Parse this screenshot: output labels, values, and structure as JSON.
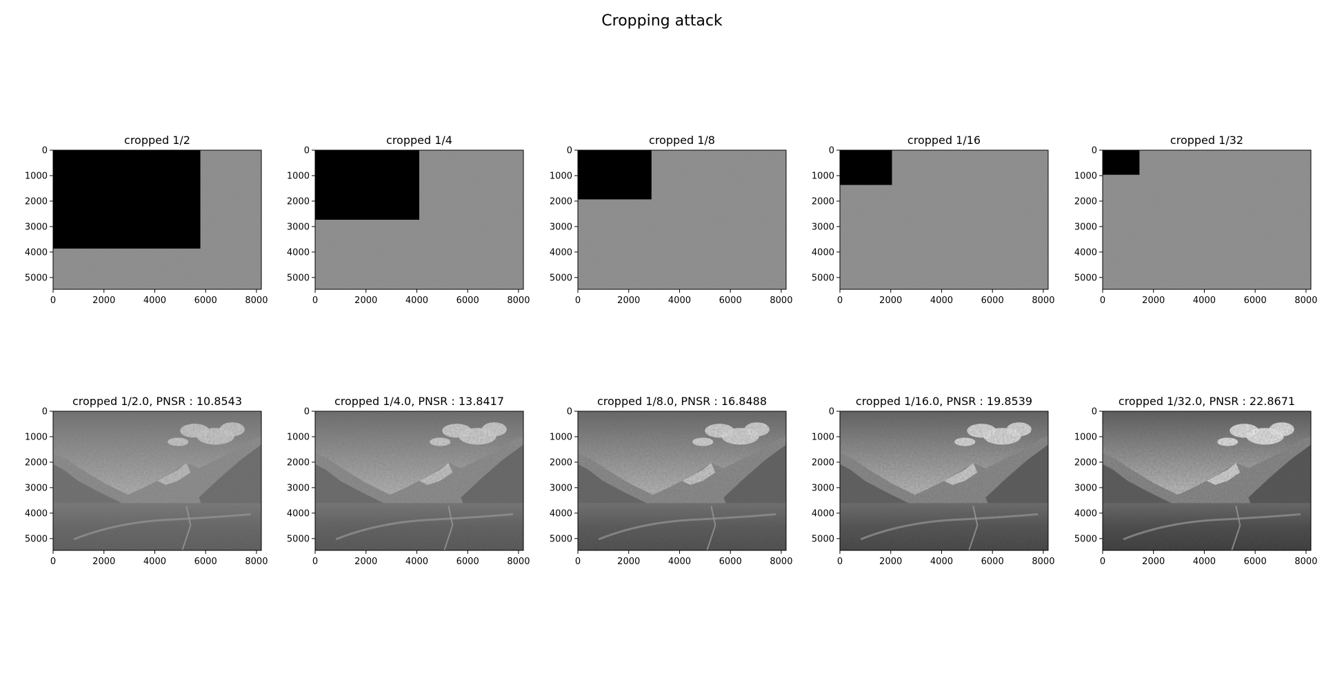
{
  "figure": {
    "suptitle": "Cropping attack"
  },
  "chart_data": [
    {
      "type": "image",
      "title": "cropped 1/2",
      "content": "cropped watermark",
      "crop_fraction": 0.5,
      "xlim": [
        0,
        8192
      ],
      "ylim": [
        5464,
        0
      ],
      "xticks": [
        0,
        2000,
        4000,
        6000,
        8000
      ],
      "yticks": [
        0,
        1000,
        2000,
        3000,
        4000,
        5000
      ],
      "colormap": "gray"
    },
    {
      "type": "image",
      "title": "cropped 1/4",
      "content": "cropped watermark",
      "crop_fraction": 0.25,
      "xlim": [
        0,
        8192
      ],
      "ylim": [
        5464,
        0
      ],
      "xticks": [
        0,
        2000,
        4000,
        6000,
        8000
      ],
      "yticks": [
        0,
        1000,
        2000,
        3000,
        4000,
        5000
      ],
      "colormap": "gray"
    },
    {
      "type": "image",
      "title": "cropped 1/8",
      "content": "cropped watermark",
      "crop_fraction": 0.125,
      "xlim": [
        0,
        8192
      ],
      "ylim": [
        5464,
        0
      ],
      "xticks": [
        0,
        2000,
        4000,
        6000,
        8000
      ],
      "yticks": [
        0,
        1000,
        2000,
        3000,
        4000,
        5000
      ],
      "colormap": "gray"
    },
    {
      "type": "image",
      "title": "cropped 1/16",
      "content": "cropped watermark",
      "crop_fraction": 0.0625,
      "xlim": [
        0,
        8192
      ],
      "ylim": [
        5464,
        0
      ],
      "xticks": [
        0,
        2000,
        4000,
        6000,
        8000
      ],
      "yticks": [
        0,
        1000,
        2000,
        3000,
        4000,
        5000
      ],
      "colormap": "gray"
    },
    {
      "type": "image",
      "title": "cropped 1/32",
      "content": "cropped watermark",
      "crop_fraction": 0.03125,
      "xlim": [
        0,
        8192
      ],
      "ylim": [
        5464,
        0
      ],
      "xticks": [
        0,
        2000,
        4000,
        6000,
        8000
      ],
      "yticks": [
        0,
        1000,
        2000,
        3000,
        4000,
        5000
      ],
      "colormap": "gray"
    },
    {
      "type": "image",
      "title": "cropped 1/2.0, PNSR : 10.8543",
      "content": "recovered landscape",
      "pnsr": 10.8543,
      "xlim": [
        0,
        8192
      ],
      "ylim": [
        5464,
        0
      ],
      "xticks": [
        0,
        2000,
        4000,
        6000,
        8000
      ],
      "yticks": [
        0,
        1000,
        2000,
        3000,
        4000,
        5000
      ],
      "colormap": "gray"
    },
    {
      "type": "image",
      "title": "cropped 1/4.0, PNSR : 13.8417",
      "content": "recovered landscape",
      "pnsr": 13.8417,
      "xlim": [
        0,
        8192
      ],
      "ylim": [
        5464,
        0
      ],
      "xticks": [
        0,
        2000,
        4000,
        6000,
        8000
      ],
      "yticks": [
        0,
        1000,
        2000,
        3000,
        4000,
        5000
      ],
      "colormap": "gray"
    },
    {
      "type": "image",
      "title": "cropped 1/8.0, PNSR : 16.8488",
      "content": "recovered landscape",
      "pnsr": 16.8488,
      "xlim": [
        0,
        8192
      ],
      "ylim": [
        5464,
        0
      ],
      "xticks": [
        0,
        2000,
        4000,
        6000,
        8000
      ],
      "yticks": [
        0,
        1000,
        2000,
        3000,
        4000,
        5000
      ],
      "colormap": "gray"
    },
    {
      "type": "image",
      "title": "cropped 1/16.0, PNSR : 19.8539",
      "content": "recovered landscape",
      "pnsr": 19.8539,
      "xlim": [
        0,
        8192
      ],
      "ylim": [
        5464,
        0
      ],
      "xticks": [
        0,
        2000,
        4000,
        6000,
        8000
      ],
      "yticks": [
        0,
        1000,
        2000,
        3000,
        4000,
        5000
      ],
      "colormap": "gray"
    },
    {
      "type": "image",
      "title": "cropped 1/32.0, PNSR : 22.8671",
      "content": "recovered landscape",
      "pnsr": 22.8671,
      "xlim": [
        0,
        8192
      ],
      "ylim": [
        5464,
        0
      ],
      "xticks": [
        0,
        2000,
        4000,
        6000,
        8000
      ],
      "yticks": [
        0,
        1000,
        2000,
        3000,
        4000,
        5000
      ],
      "colormap": "gray"
    }
  ]
}
